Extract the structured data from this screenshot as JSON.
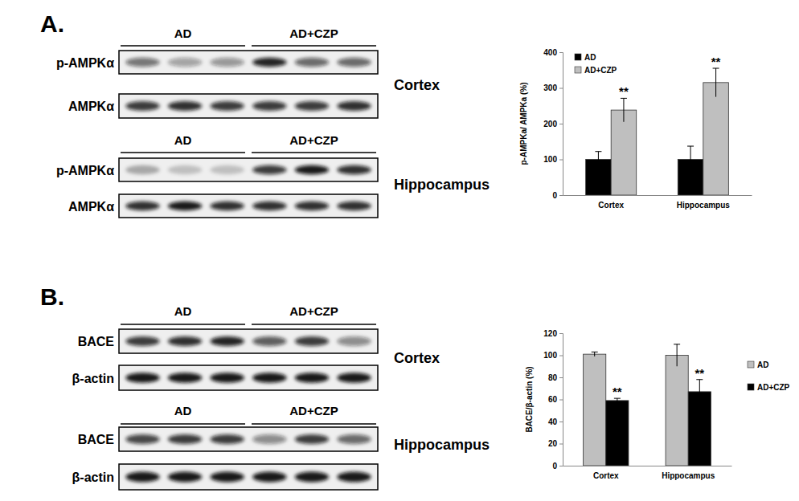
{
  "chart_data": [
    {
      "type": "bar",
      "y_label": "p-AMPKa/ AMPKa (%)",
      "categories": [
        "Cortex",
        "Hippocampus"
      ],
      "series": [
        {
          "name": "AD",
          "color": "#000000",
          "values": [
            100,
            100
          ],
          "errors": [
            22,
            37
          ]
        },
        {
          "name": "AD+CZP",
          "color": "#bfbfbf",
          "values": [
            238,
            315
          ],
          "errors": [
            33,
            40
          ],
          "annotations": [
            "**",
            "**"
          ]
        }
      ],
      "ylim": [
        0,
        400
      ],
      "yticks": [
        0,
        100,
        200,
        300,
        400
      ],
      "legend": "upper left"
    },
    {
      "type": "bar",
      "y_label": "BACE/β-actin (%)",
      "categories": [
        "Cortex",
        "Hippocampus"
      ],
      "series": [
        {
          "name": "AD",
          "color": "#bfbfbf",
          "values": [
            101,
            100
          ],
          "errors": [
            2,
            10
          ]
        },
        {
          "name": "AD+CZP",
          "color": "#000000",
          "values": [
            59,
            67
          ],
          "errors": [
            2,
            11
          ],
          "annotations": [
            "**",
            "**"
          ]
        }
      ],
      "ylim": [
        0,
        120
      ],
      "yticks": [
        0,
        20,
        40,
        60,
        80,
        100,
        120
      ],
      "legend": "right"
    }
  ],
  "blots": [
    {
      "label": "A.",
      "blocks": [
        {
          "tissue": "Cortex",
          "groups": [
            "AD",
            "AD+CZP"
          ],
          "rows": [
            "p-AMPKα",
            "AMPKα"
          ]
        },
        {
          "tissue": "Hippocampus",
          "groups": [
            "AD",
            "AD+CZP"
          ],
          "rows": [
            "p-AMPKα",
            "AMPKα"
          ]
        }
      ]
    },
    {
      "label": "B.",
      "blocks": [
        {
          "tissue": "Cortex",
          "groups": [
            "AD",
            "AD+CZP"
          ],
          "rows": [
            "BACE",
            "β-actin"
          ]
        },
        {
          "tissue": "Hippocampus",
          "groups": [
            "AD",
            "AD+CZP"
          ],
          "rows": [
            "BACE",
            "β-actin"
          ]
        }
      ]
    }
  ]
}
